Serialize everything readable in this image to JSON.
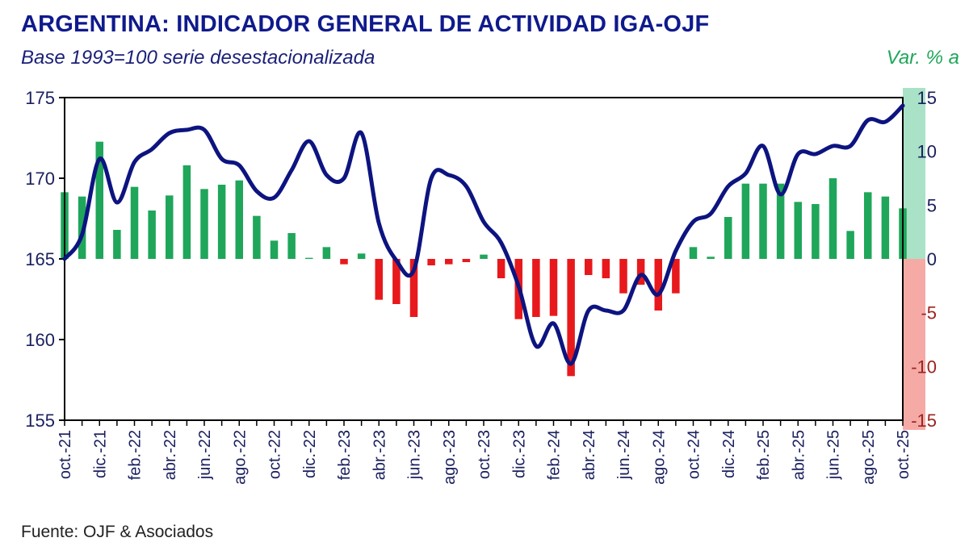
{
  "header": {
    "title": "ARGENTINA: INDICADOR GENERAL DE ACTIVIDAD IGA-OJF",
    "subtitle": "Base 1993=100 serie desestacionalizada",
    "right_axis_title": "Var. % a"
  },
  "footer": {
    "source": "Fuente: OJF & Asociados"
  },
  "colors": {
    "line": "#0d1480",
    "bar_positive": "#1fa65a",
    "bar_negative": "#e8191c",
    "band_positive": "#a9e2c6",
    "band_negative": "#f6aaa5",
    "axis_text": "#1a1f5e"
  },
  "chart_data": {
    "type": "bar+line",
    "x": [
      "oct.-21",
      "nov.-21",
      "dic.-21",
      "ene.-22",
      "feb.-22",
      "mar.-22",
      "abr.-22",
      "may.-22",
      "jun.-22",
      "jul.-22",
      "ago.-22",
      "sep.-22",
      "oct.-22",
      "nov.-22",
      "dic.-22",
      "ene.-23",
      "feb.-23",
      "mar.-23",
      "abr.-23",
      "may.-23",
      "jun.-23",
      "jul.-23",
      "ago.-23",
      "sep.-23",
      "oct.-23",
      "nov.-23",
      "dic.-23",
      "ene.-24",
      "feb.-24",
      "mar.-24",
      "abr.-24",
      "may.-24",
      "jun.-24",
      "jul.-24",
      "ago.-24",
      "sep.-24",
      "oct.-24",
      "nov.-24",
      "dic.-24",
      "ene.-25",
      "feb.-25",
      "mar.-25",
      "abr.-25",
      "may.-25",
      "jun.-25",
      "jul.-25",
      "ago.-25",
      "sep.-25",
      "oct.-25"
    ],
    "tick_labels": [
      "oct.-21",
      "dic.-21",
      "feb.-22",
      "abr.-22",
      "jun.-22",
      "ago.-22",
      "oct.-22",
      "dic.-22",
      "feb.-23",
      "abr.-23",
      "jun.-23",
      "ago.-23",
      "oct.-23",
      "dic.-23",
      "feb.-24",
      "abr.-24",
      "jun.-24",
      "ago.-24",
      "oct.-24",
      "dic.-24",
      "feb.-25",
      "abr.-25",
      "jun.-25",
      "ago.-25",
      "oct.-25"
    ],
    "series": [
      {
        "name": "",
        "type": "line",
        "axis": "left",
        "values": [
          165.0,
          166.5,
          171.2,
          168.5,
          171.0,
          171.8,
          172.8,
          173.0,
          173.0,
          171.2,
          170.8,
          169.2,
          168.8,
          170.5,
          172.3,
          170.2,
          170.0,
          172.8,
          167.2,
          164.9,
          164.3,
          170.0,
          170.2,
          169.5,
          167.3,
          166.0,
          163.3,
          159.6,
          161.0,
          158.5,
          161.8,
          161.8,
          161.8,
          164.0,
          162.8,
          165.5,
          167.3,
          167.8,
          169.5,
          170.3,
          172.0,
          169.0,
          171.5,
          171.5,
          172.0,
          172.0,
          173.6,
          173.5,
          174.5
        ]
      },
      {
        "name": "",
        "type": "bar",
        "axis": "right",
        "values": [
          6.2,
          5.8,
          10.9,
          2.7,
          6.7,
          4.5,
          5.9,
          8.7,
          6.5,
          6.9,
          7.3,
          4.0,
          1.7,
          2.4,
          0.1,
          1.1,
          -0.5,
          0.5,
          -3.8,
          -4.2,
          -5.4,
          -0.6,
          -0.5,
          -0.3,
          0.4,
          -1.8,
          -5.6,
          -5.4,
          -5.3,
          -10.9,
          -1.5,
          -1.8,
          -3.2,
          -2.4,
          -4.8,
          -3.2,
          1.1,
          0.2,
          3.9,
          7.0,
          7.0,
          7.0,
          5.3,
          5.1,
          7.5,
          2.6,
          6.2,
          5.8,
          4.7
        ]
      }
    ],
    "y_left": {
      "min": 155,
      "max": 175,
      "ticks": [
        155,
        160,
        165,
        170,
        175
      ]
    },
    "y_right": {
      "min": -15,
      "max": 15,
      "ticks": [
        15,
        10,
        5,
        0,
        -5,
        -10,
        -15
      ]
    },
    "grid": false,
    "legend": "none"
  }
}
